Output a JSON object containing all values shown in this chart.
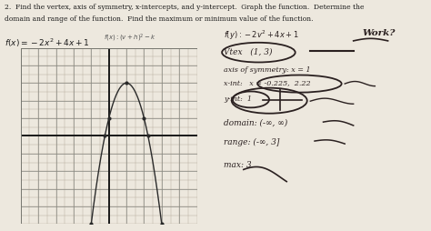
{
  "background_color": "#ede8de",
  "title_line1": "2.  Find the vertex, axis of symmetry, x-intercepts, and y-intercept.  Graph the function.  Determine the",
  "title_line2": "domain and range of the function.  Find the maximum or minimum value of the function.",
  "func_text": "f(x) = -2x² + 4x + 1",
  "vertex_form": "f(x): (v+h)²- k",
  "right_eq": "f(y): -2v² + 4x + 1",
  "work_text": "Work?",
  "vertex_note": "Vtex   (1, 3)",
  "axis_note": "axis of symmetry: x = 1",
  "xint_note": "x-int:   x ≈ -0.225,  2.22",
  "yint_note": "y-int:  1",
  "domain_note": "domain: (-∞, ∞)",
  "range_note": "range: (-∞, 3]",
  "max_note": "max: 3",
  "grid_color": "#b0a898",
  "axis_color": "#1a1a1a",
  "parabola_color": "#2a2a2a",
  "text_color": "#1a1a1a",
  "hand_color": "#2a2020",
  "grid_n": 10,
  "gxmin": -5,
  "gxmax": 5,
  "gymin": -5,
  "gymax": 5
}
